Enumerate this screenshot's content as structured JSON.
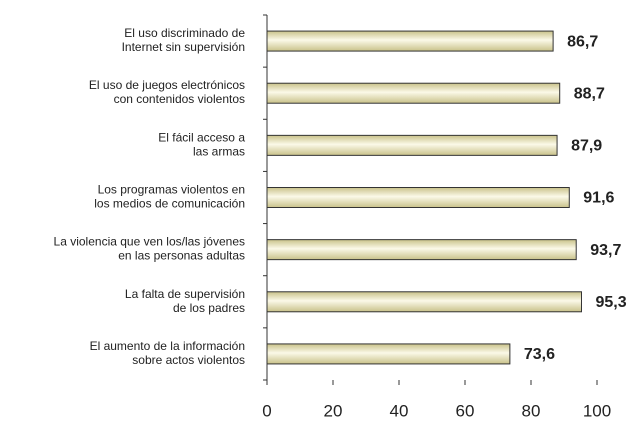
{
  "chart_data": {
    "type": "bar",
    "orientation": "horizontal",
    "categories": [
      [
        "El uso discriminado de",
        "Internet sin supervisión"
      ],
      [
        "El uso de juegos electrónicos",
        "con contenidos violentos"
      ],
      [
        "El fácil acceso a",
        "las armas"
      ],
      [
        "Los programas violentos en",
        "los medios de comunicación"
      ],
      [
        "La violencia que ven los/las jóvenes",
        "en las personas adultas"
      ],
      [
        "La falta de supervisión",
        "de los padres"
      ],
      [
        "El aumento de la información",
        "sobre actos violentos"
      ]
    ],
    "values": [
      86.7,
      88.7,
      87.9,
      91.6,
      93.7,
      95.3,
      73.6
    ],
    "value_labels": [
      "86,7",
      "88,7",
      "87,9",
      "91,6",
      "93,7",
      "95,3",
      "73,6"
    ],
    "color": "#c9c28a",
    "xlim": [
      0,
      100
    ],
    "xticks": [
      0,
      20,
      40,
      60,
      80,
      100
    ]
  }
}
